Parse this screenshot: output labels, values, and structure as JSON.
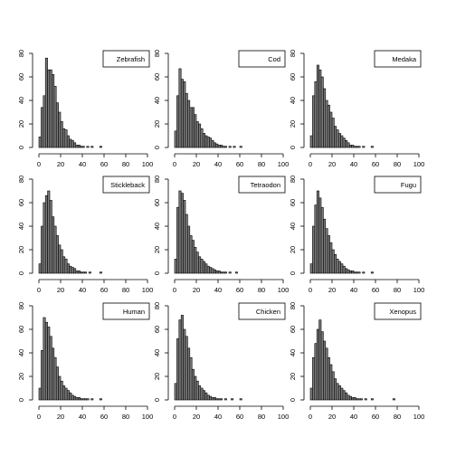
{
  "chart_data": [
    {
      "type": "bar",
      "legend": "Zebrafish",
      "legend_position": "top-right",
      "xlim": [
        0,
        100
      ],
      "ylim": [
        0,
        80
      ],
      "xticks": [
        "0",
        "20",
        "40",
        "60",
        "80",
        "100"
      ],
      "yticks": [
        "0",
        "20",
        "40",
        "60",
        "80"
      ],
      "bin_width": 2,
      "values": [
        9,
        34,
        44,
        76,
        66,
        66,
        62,
        52,
        38,
        30,
        22,
        16,
        15,
        10,
        7,
        6,
        4,
        2,
        2,
        1,
        1,
        0,
        1,
        0,
        1,
        0,
        0,
        0,
        1,
        0,
        0,
        0,
        0,
        0,
        0,
        0,
        0,
        0,
        0,
        0
      ]
    },
    {
      "type": "bar",
      "legend": "Cod",
      "legend_position": "top-right",
      "xlim": [
        0,
        100
      ],
      "ylim": [
        0,
        80
      ],
      "xticks": [
        "0",
        "20",
        "40",
        "60",
        "80",
        "100"
      ],
      "yticks": [
        "0",
        "20",
        "40",
        "60",
        "80"
      ],
      "bin_width": 2,
      "values": [
        14,
        44,
        67,
        58,
        56,
        46,
        40,
        34,
        34,
        28,
        22,
        20,
        16,
        12,
        10,
        9,
        8,
        6,
        4,
        3,
        2,
        2,
        1,
        1,
        0,
        1,
        0,
        1,
        0,
        0,
        1,
        0,
        0,
        0,
        0,
        0,
        0,
        0,
        0,
        0
      ]
    },
    {
      "type": "bar",
      "legend": "Medaka",
      "legend_position": "top-right",
      "xlim": [
        0,
        100
      ],
      "ylim": [
        0,
        80
      ],
      "xticks": [
        "0",
        "20",
        "40",
        "60",
        "80",
        "100"
      ],
      "yticks": [
        "0",
        "20",
        "40",
        "60",
        "80"
      ],
      "bin_width": 2,
      "values": [
        10,
        44,
        56,
        70,
        66,
        60,
        50,
        40,
        36,
        30,
        25,
        18,
        15,
        12,
        10,
        8,
        6,
        4,
        2,
        2,
        1,
        1,
        1,
        0,
        1,
        0,
        0,
        0,
        1,
        0,
        0,
        0,
        0,
        0,
        0,
        0,
        0,
        0,
        0,
        0
      ]
    },
    {
      "type": "bar",
      "legend": "Stickleback",
      "legend_position": "top-right",
      "xlim": [
        0,
        100
      ],
      "ylim": [
        0,
        80
      ],
      "xticks": [
        "0",
        "20",
        "40",
        "60",
        "80",
        "100"
      ],
      "yticks": [
        "0",
        "20",
        "40",
        "60",
        "80"
      ],
      "bin_width": 2,
      "values": [
        8,
        40,
        60,
        66,
        70,
        62,
        48,
        40,
        32,
        24,
        20,
        14,
        12,
        8,
        6,
        5,
        4,
        2,
        2,
        1,
        1,
        1,
        0,
        1,
        0,
        0,
        0,
        0,
        1,
        0,
        0,
        0,
        0,
        0,
        0,
        0,
        0,
        0,
        0,
        0
      ]
    },
    {
      "type": "bar",
      "legend": "Tetraodon",
      "legend_position": "top-right",
      "xlim": [
        0,
        100
      ],
      "ylim": [
        0,
        80
      ],
      "xticks": [
        "0",
        "20",
        "40",
        "60",
        "80",
        "100"
      ],
      "yticks": [
        "0",
        "20",
        "40",
        "60",
        "80"
      ],
      "bin_width": 2,
      "values": [
        12,
        56,
        70,
        68,
        62,
        50,
        40,
        32,
        28,
        22,
        18,
        14,
        12,
        10,
        8,
        6,
        5,
        4,
        3,
        2,
        2,
        1,
        1,
        1,
        0,
        1,
        0,
        0,
        1,
        0,
        0,
        0,
        0,
        0,
        0,
        0,
        0,
        0,
        0,
        0
      ]
    },
    {
      "type": "bar",
      "legend": "Fugu",
      "legend_position": "top-right",
      "xlim": [
        0,
        100
      ],
      "ylim": [
        0,
        80
      ],
      "xticks": [
        "0",
        "20",
        "40",
        "60",
        "80",
        "100"
      ],
      "yticks": [
        "0",
        "20",
        "40",
        "60",
        "80"
      ],
      "bin_width": 2,
      "values": [
        8,
        40,
        58,
        70,
        64,
        56,
        46,
        38,
        32,
        26,
        20,
        16,
        12,
        10,
        8,
        6,
        4,
        3,
        2,
        2,
        1,
        1,
        1,
        0,
        1,
        0,
        0,
        0,
        1,
        0,
        0,
        0,
        0,
        0,
        0,
        0,
        0,
        0,
        0,
        0
      ]
    },
    {
      "type": "bar",
      "legend": "Human",
      "legend_position": "top-right",
      "xlim": [
        0,
        100
      ],
      "ylim": [
        0,
        80
      ],
      "xticks": [
        "0",
        "20",
        "40",
        "60",
        "80",
        "100"
      ],
      "yticks": [
        "0",
        "20",
        "40",
        "60",
        "80"
      ],
      "bin_width": 2,
      "values": [
        10,
        42,
        70,
        66,
        62,
        54,
        44,
        36,
        28,
        20,
        16,
        12,
        10,
        8,
        6,
        4,
        3,
        2,
        2,
        1,
        1,
        1,
        1,
        0,
        1,
        0,
        0,
        0,
        1,
        0,
        0,
        0,
        0,
        0,
        0,
        0,
        0,
        0,
        0,
        0
      ]
    },
    {
      "type": "bar",
      "legend": "Chicken",
      "legend_position": "top-right",
      "xlim": [
        0,
        100
      ],
      "ylim": [
        0,
        80
      ],
      "xticks": [
        "0",
        "20",
        "40",
        "60",
        "80",
        "100"
      ],
      "yticks": [
        "0",
        "20",
        "40",
        "60",
        "80"
      ],
      "bin_width": 2,
      "values": [
        14,
        52,
        68,
        72,
        60,
        54,
        44,
        36,
        26,
        20,
        16,
        12,
        10,
        8,
        6,
        4,
        3,
        2,
        2,
        1,
        1,
        1,
        0,
        1,
        0,
        0,
        1,
        0,
        0,
        0,
        1,
        0,
        0,
        0,
        0,
        0,
        0,
        0,
        0,
        0
      ]
    },
    {
      "type": "bar",
      "legend": "Xenopus",
      "legend_position": "top-right",
      "xlim": [
        0,
        100
      ],
      "ylim": [
        0,
        80
      ],
      "xticks": [
        "0",
        "20",
        "40",
        "60",
        "80",
        "100"
      ],
      "yticks": [
        "0",
        "20",
        "40",
        "60",
        "80"
      ],
      "bin_width": 2,
      "values": [
        10,
        36,
        48,
        60,
        68,
        58,
        50,
        44,
        36,
        30,
        24,
        18,
        14,
        12,
        10,
        8,
        6,
        4,
        3,
        2,
        2,
        1,
        1,
        1,
        0,
        1,
        0,
        0,
        1,
        0,
        0,
        0,
        0,
        0,
        0,
        0,
        0,
        0,
        1,
        0
      ]
    }
  ]
}
